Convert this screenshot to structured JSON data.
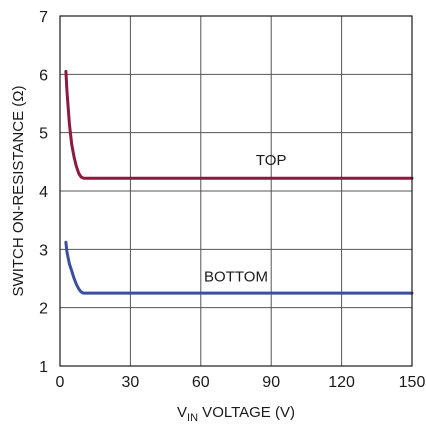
{
  "chart_data": {
    "type": "line",
    "xlabel_base": "V",
    "xlabel_sub": "IN",
    "xlabel_rest": " VOLTAGE (V)",
    "ylabel": "SWITCH ON-RESISTANCE (Ω)",
    "xlim": [
      0,
      150
    ],
    "ylim": [
      1,
      7
    ],
    "x_ticks": [
      0,
      30,
      60,
      90,
      120,
      150
    ],
    "y_ticks": [
      1,
      2,
      3,
      4,
      5,
      6,
      7
    ],
    "grid": true,
    "series": [
      {
        "name": "TOP",
        "color": "#8b1a3f",
        "label_at": [
          90,
          4.45
        ],
        "points": [
          [
            2.5,
            6.05
          ],
          [
            3,
            5.7
          ],
          [
            4,
            5.15
          ],
          [
            5,
            4.8
          ],
          [
            6,
            4.58
          ],
          [
            7,
            4.42
          ],
          [
            8,
            4.3
          ],
          [
            9,
            4.24
          ],
          [
            10,
            4.22
          ],
          [
            150,
            4.22
          ]
        ]
      },
      {
        "name": "BOTTOM",
        "color": "#3a4fa0",
        "label_at": [
          75,
          2.45
        ],
        "points": [
          [
            2.5,
            3.12
          ],
          [
            3,
            2.95
          ],
          [
            4,
            2.75
          ],
          [
            5,
            2.63
          ],
          [
            6,
            2.5
          ],
          [
            7,
            2.4
          ],
          [
            8,
            2.32
          ],
          [
            9,
            2.27
          ],
          [
            10,
            2.25
          ],
          [
            150,
            2.25
          ]
        ]
      }
    ]
  }
}
